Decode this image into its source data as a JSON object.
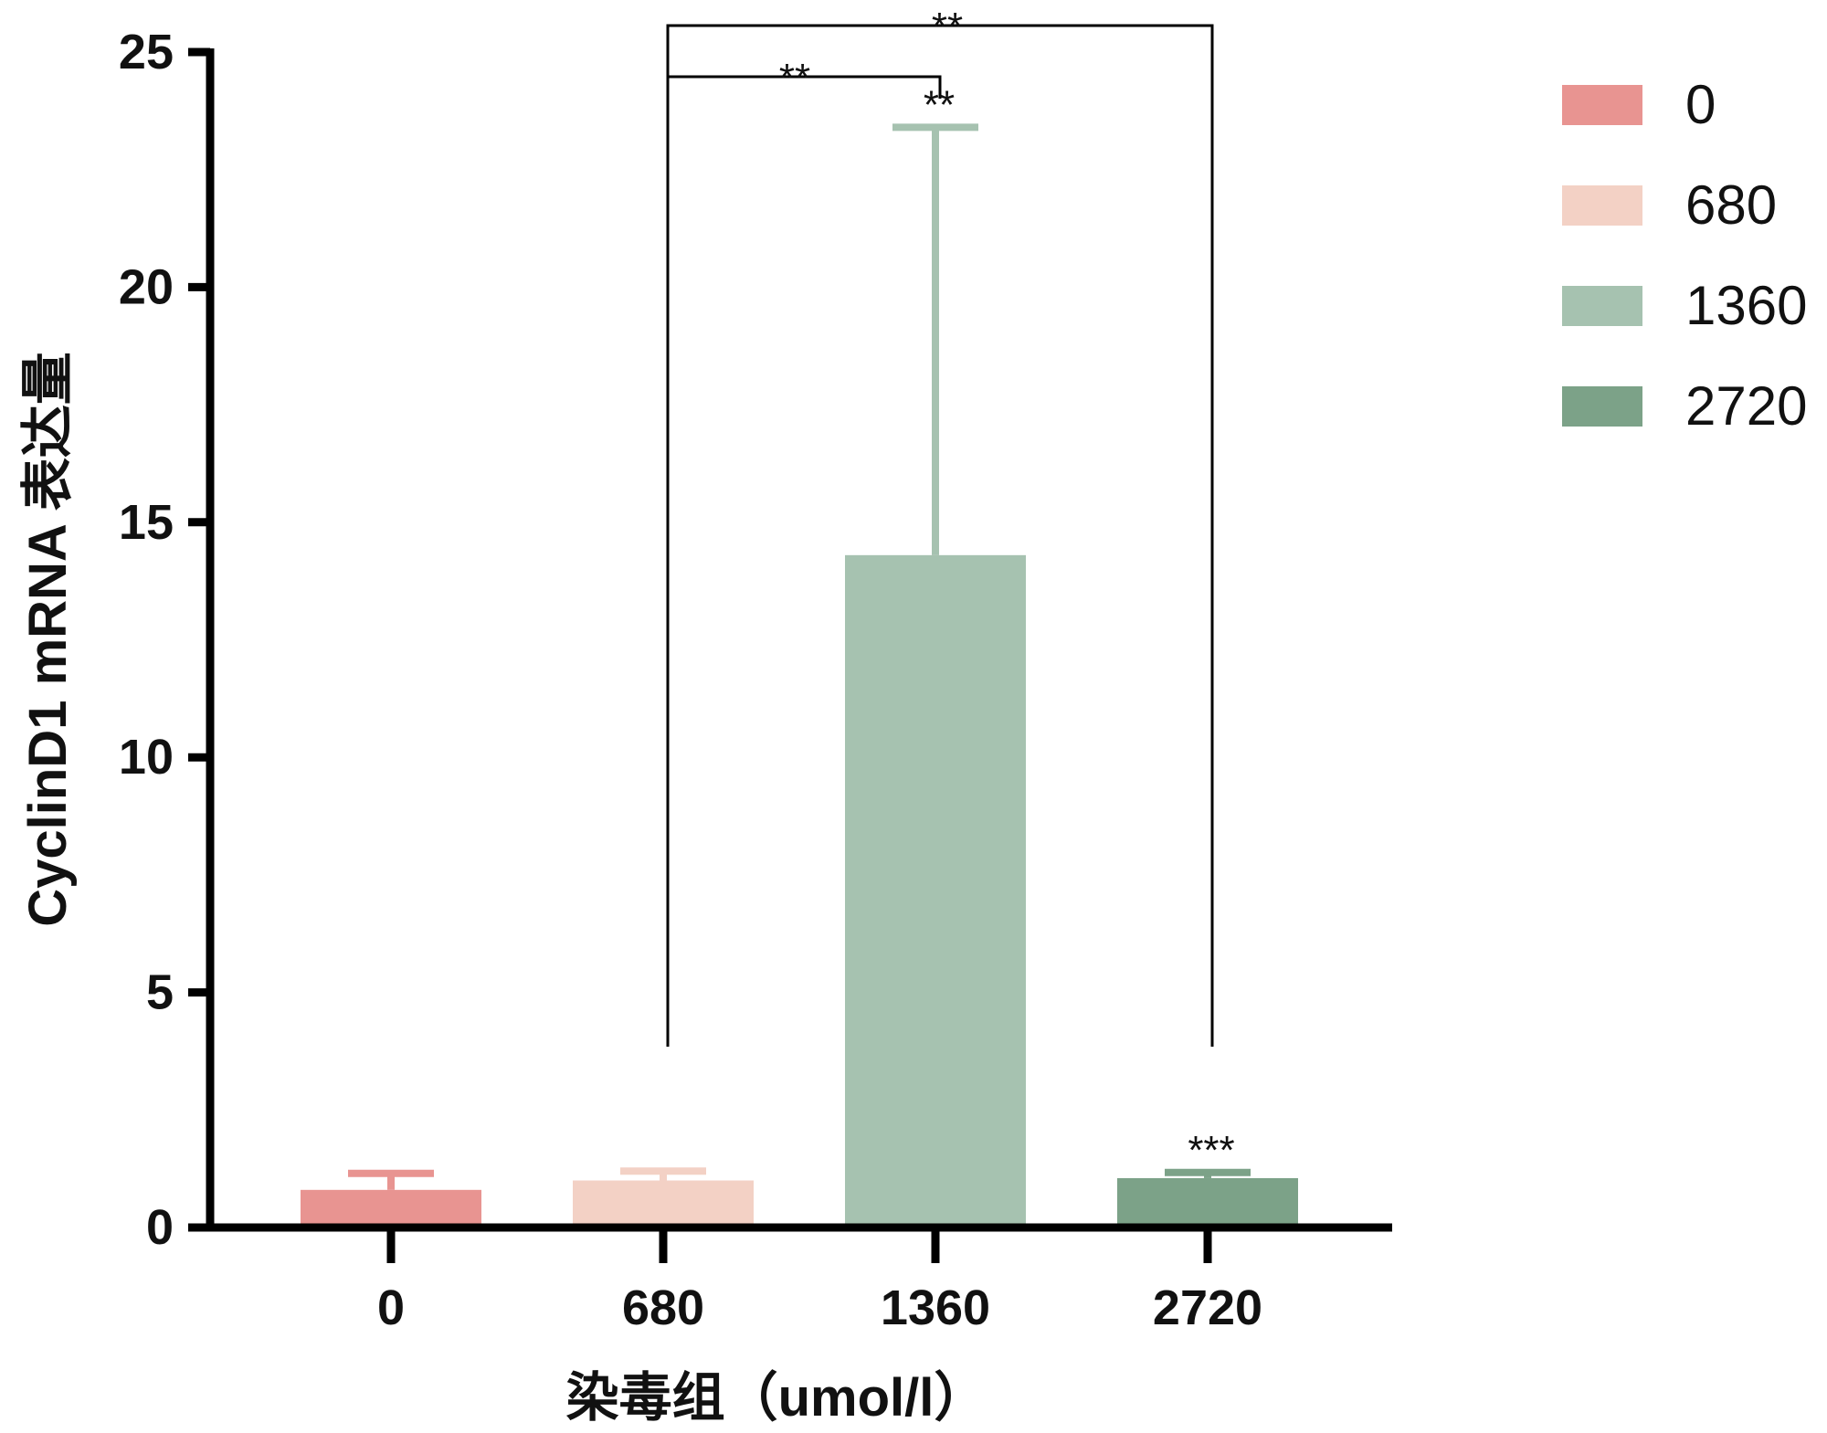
{
  "chart_data": {
    "type": "bar",
    "categories": [
      "0",
      "680",
      "1360",
      "2720"
    ],
    "values": [
      0.8,
      1.0,
      14.3,
      1.05
    ],
    "errors": [
      0.35,
      0.2,
      9.1,
      0.12
    ],
    "colors": [
      "#e89491",
      "#f3d1c5",
      "#a6c2b0",
      "#7ca288"
    ],
    "xlabel": "染毒组（umol/l）",
    "ylabel": "CyclinD1 mRNA 表达量",
    "ylim": [
      0,
      25
    ],
    "yticks": [
      "0",
      "5",
      "10",
      "15",
      "20",
      "25"
    ],
    "grid": false,
    "legend": {
      "placement": "top-right",
      "entries": [
        "0",
        "680",
        "1360",
        "2720"
      ]
    },
    "bar_annotations": [
      {
        "category": "1360",
        "text": "**"
      },
      {
        "category": "2720",
        "text": "***"
      }
    ],
    "comparisons": [
      {
        "from": "680",
        "to": "1360",
        "text": "**"
      },
      {
        "from": "680",
        "to": "2720",
        "text": "**"
      }
    ]
  }
}
